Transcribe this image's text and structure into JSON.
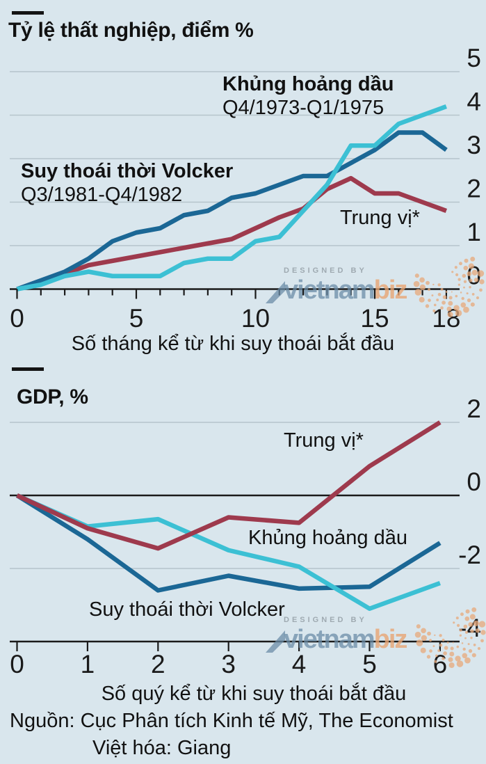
{
  "page": {
    "background": "#d9e6ed"
  },
  "colors": {
    "grid": "#b6c4cc",
    "axis": "#1a1a1a",
    "text": "#1a1a1a",
    "volcker_blue": "#1b6795",
    "oil_cyan": "#3cc0d4",
    "median_red": "#9e3a4d",
    "watermark_blue": "#6a8ca7",
    "watermark_orange": "#e8a472"
  },
  "chart_data": [
    {
      "type": "line",
      "title": "Tỷ lệ thất nghiệp, điểm %",
      "xlabel": "Số tháng kể từ khi suy thoái bắt đầu",
      "x": [
        0,
        1,
        2,
        3,
        4,
        5,
        6,
        7,
        8,
        9,
        10,
        11,
        12,
        13,
        14,
        15,
        16,
        17,
        18
      ],
      "x_tick_labels": [
        0,
        5,
        10,
        15,
        18
      ],
      "ylim": [
        0,
        5
      ],
      "y_ticks": [
        0,
        1,
        2,
        3,
        4,
        5
      ],
      "zero_line": 0,
      "axis_line": 0,
      "legend_position": "inline-annotations",
      "series": [
        {
          "id": "median",
          "name": "Trung vị*",
          "color": "#9e3a4d",
          "values": [
            0,
            0.15,
            0.35,
            0.55,
            0.65,
            0.75,
            0.85,
            0.95,
            1.05,
            1.15,
            1.4,
            1.65,
            1.85,
            2.3,
            2.55,
            2.2,
            2.2,
            2.0,
            1.8
          ]
        },
        {
          "id": "volcker",
          "name": "Suy thoái thời Volcker",
          "period": "Q3/1981-Q4/1982",
          "color": "#1b6795",
          "values": [
            0,
            0.2,
            0.4,
            0.7,
            1.1,
            1.3,
            1.4,
            1.7,
            1.8,
            2.1,
            2.2,
            2.4,
            2.6,
            2.6,
            2.9,
            3.2,
            3.6,
            3.6,
            3.2
          ]
        },
        {
          "id": "oil",
          "name": "Khủng hoảng dầu",
          "period": "Q4/1973-Q1/1975",
          "color": "#3cc0d4",
          "values": [
            0,
            0.1,
            0.3,
            0.4,
            0.3,
            0.3,
            0.3,
            0.6,
            0.7,
            0.7,
            1.1,
            1.2,
            1.8,
            2.4,
            3.3,
            3.3,
            3.8,
            4.0,
            4.2
          ]
        }
      ],
      "annotations": {
        "oil": {
          "line1": "Khủng hoảng dầu",
          "line2": "Q4/1973-Q1/1975"
        },
        "volcker": {
          "line1": "Suy thoái thời Volcker",
          "line2": "Q3/1981-Q4/1982"
        },
        "median": {
          "line1": "Trung vị*"
        }
      }
    },
    {
      "type": "line",
      "title": "GDP, %",
      "xlabel": "Số quý kể từ khi suy thoái bắt đầu",
      "x": [
        0,
        1,
        2,
        3,
        4,
        5,
        6
      ],
      "x_tick_labels": [
        0,
        1,
        2,
        3,
        4,
        5,
        6
      ],
      "ylim": [
        -4,
        2
      ],
      "y_ticks": [
        -4,
        -2,
        0,
        2
      ],
      "zero_line": 0,
      "axis_line": -4,
      "legend_position": "inline-annotations",
      "series": [
        {
          "id": "volcker",
          "name": "Suy thoái thời Volcker",
          "color": "#1b6795",
          "values": [
            0,
            -1.2,
            -2.6,
            -2.2,
            -2.55,
            -2.5,
            -1.3
          ]
        },
        {
          "id": "oil",
          "name": "Khủng hoảng dầu",
          "color": "#3cc0d4",
          "values": [
            0,
            -0.85,
            -0.65,
            -1.5,
            -1.95,
            -3.1,
            -2.4
          ]
        },
        {
          "id": "median",
          "name": "Trung vị*",
          "color": "#9e3a4d",
          "values": [
            0,
            -0.9,
            -1.45,
            -0.6,
            -0.75,
            0.8,
            2.0
          ]
        }
      ],
      "annotations": {
        "median": {
          "line1": "Trung vị*"
        },
        "oil": {
          "line1": "Khủng hoảng dầu"
        },
        "volcker": {
          "line1": "Suy thoái thời Volcker"
        }
      }
    }
  ],
  "watermark": {
    "designed_by": "DESIGNED BY",
    "brand_blue": "vietnam",
    "brand_orange": "biz"
  },
  "footer": {
    "source": "Nguồn: Cục Phân tích Kinh tế Mỹ, The Economist",
    "credit": "Việt hóa: Giang"
  }
}
